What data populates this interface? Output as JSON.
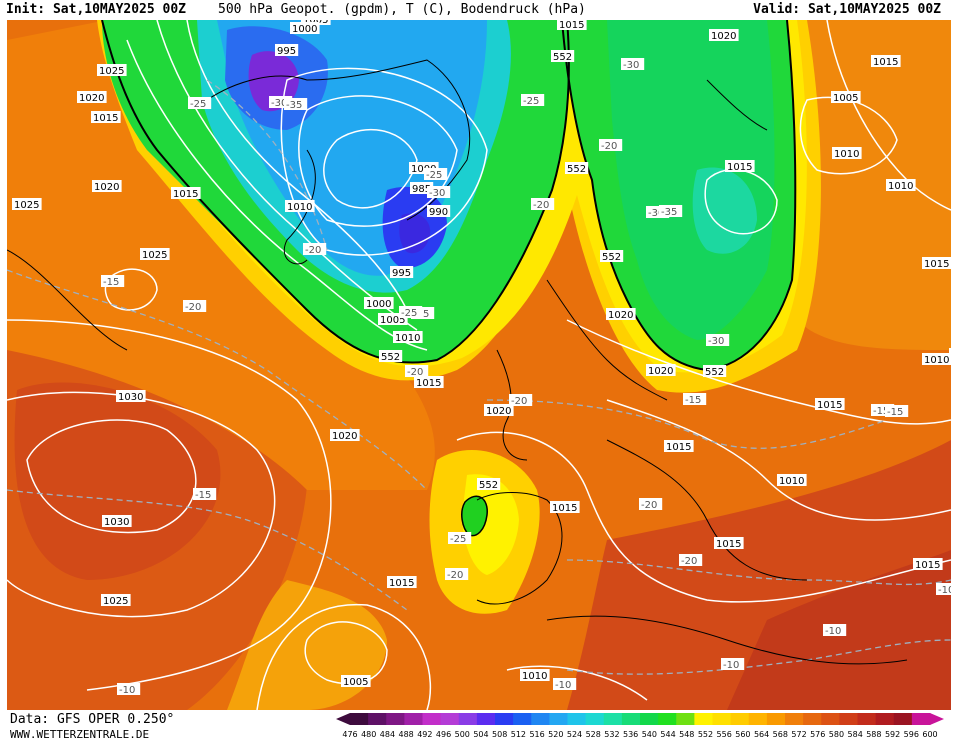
{
  "header": {
    "init": "Init: Sat,10MAY2025 00Z",
    "title": "500 hPa Geopot. (gpdm), T (C), Bodendruck (hPa)",
    "valid": "Valid: Sat,10MAY2025 00Z"
  },
  "footer": {
    "source": "Data: GFS OPER 0.250°",
    "site": "WWW.WETTERZENTRALE.DE"
  },
  "legend": {
    "values": [
      "476",
      "480",
      "484",
      "488",
      "492",
      "496",
      "500",
      "504",
      "508",
      "512",
      "516",
      "520",
      "524",
      "528",
      "532",
      "536",
      "540",
      "544",
      "548",
      "552",
      "556",
      "560",
      "564",
      "568",
      "572",
      "576",
      "580",
      "584",
      "588",
      "592",
      "596",
      "600"
    ],
    "colors": [
      "#3d0b3d",
      "#5e1166",
      "#7e1784",
      "#a020a8",
      "#c22ec9",
      "#b43cd6",
      "#8a3ce6",
      "#5b2cf0",
      "#2a3cf2",
      "#1a60f2",
      "#1f86f2",
      "#23a7f2",
      "#1fc4ea",
      "#1cd8d2",
      "#1ce0a6",
      "#17dc78",
      "#12d84a",
      "#20e020",
      "#6ee012",
      "#fff200",
      "#ffe000",
      "#ffcc00",
      "#ffb400",
      "#f99a00",
      "#f07f0a",
      "#e6680f",
      "#dc5214",
      "#d03e18",
      "#c22c1c",
      "#b01c20",
      "#9a1422",
      "#c8149a"
    ]
  },
  "pressure_labels": [
    "1005",
    "1000",
    "995",
    "1025",
    "1020",
    "1015",
    "1015",
    "1020",
    "1015",
    "1010",
    "1005",
    "1010",
    "1000",
    "985",
    "990",
    "995",
    "1000",
    "1005",
    "1010",
    "1025",
    "1015",
    "1020",
    "1030",
    "1020",
    "1030",
    "1025",
    "1015",
    "1015",
    "1020",
    "1020",
    "1015",
    "1020",
    "1010",
    "1015",
    "1015",
    "1010",
    "1010",
    "1015",
    "1005",
    "1010",
    "1015",
    "1025",
    "1015",
    "1015",
    "1015"
  ],
  "temperature_labels": [
    "-30",
    "-35",
    "-25",
    "-30",
    "-25",
    "-20",
    "-25",
    "-30",
    "-30",
    "-35",
    "-20",
    "-15",
    "-20",
    "-20",
    "-25",
    "-20",
    "-30",
    "-20",
    "-15",
    "-25",
    "-20",
    "-20",
    "-20",
    "-15",
    "-15",
    "-10",
    "-10",
    "-10",
    "-10",
    "-15",
    "-10",
    "-25"
  ],
  "geopotential_labels": [
    "552",
    "552",
    "552",
    "552",
    "552",
    "552"
  ]
}
